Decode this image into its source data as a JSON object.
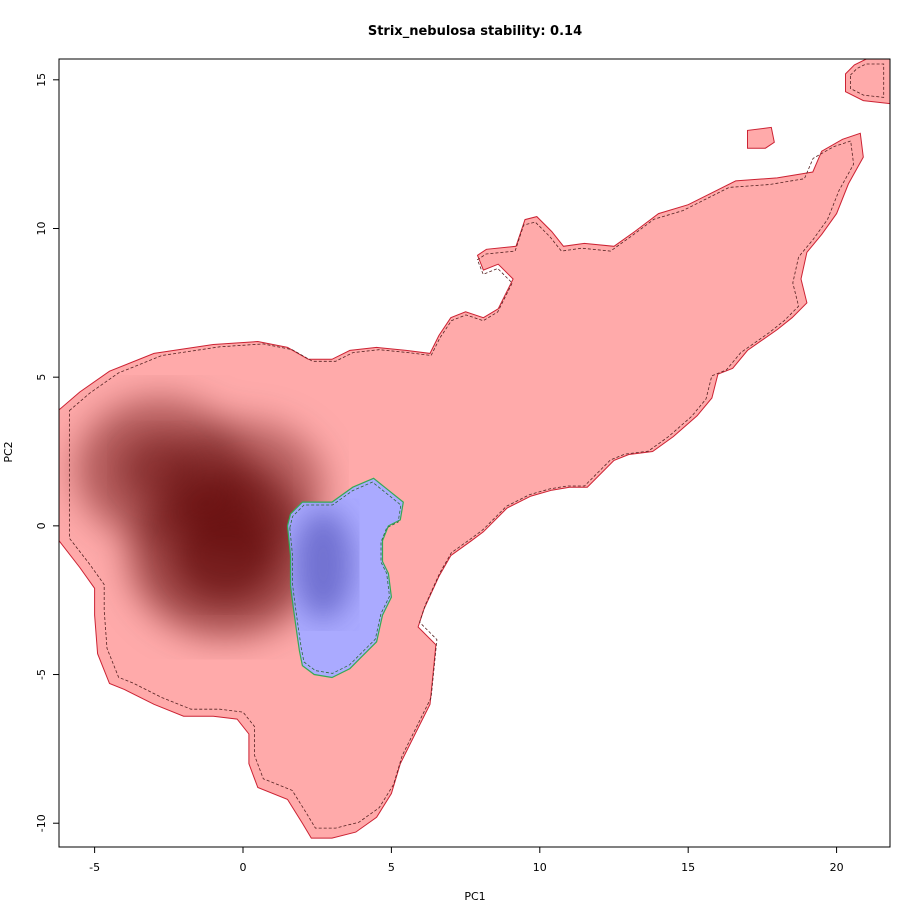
{
  "chart_data": {
    "type": "heatmap",
    "title": "Strix_nebulosa stability: 0.14",
    "xlabel": "PC1",
    "ylabel": "PC2",
    "xlim": [
      -6.2,
      21.8
    ],
    "ylim": [
      -10.8,
      15.7
    ],
    "xticks": [
      -5,
      0,
      5,
      10,
      15,
      20
    ],
    "yticks": [
      -10,
      -5,
      0,
      5,
      10,
      15
    ],
    "grid": false,
    "colors": {
      "background_niche": "#ffaaaa",
      "background_contour": "#cc2233",
      "species_niche": "#aaaaff",
      "species_contour": "#33aa55",
      "density_peak": "#5a0000",
      "species_density_peak": "#5555bb"
    },
    "series": [
      {
        "role": "background",
        "color": "#ffaaaa",
        "outline": [
          [
            -6.2,
            3.9
          ],
          [
            -5.5,
            4.5
          ],
          [
            -4.5,
            5.2
          ],
          [
            -3.0,
            5.8
          ],
          [
            -1.0,
            6.1
          ],
          [
            0.5,
            6.2
          ],
          [
            1.5,
            6.0
          ],
          [
            2.2,
            5.6
          ],
          [
            3.0,
            5.6
          ],
          [
            3.6,
            5.9
          ],
          [
            4.5,
            6.0
          ],
          [
            5.5,
            5.9
          ],
          [
            6.3,
            5.8
          ],
          [
            6.6,
            6.4
          ],
          [
            7.0,
            7.0
          ],
          [
            7.5,
            7.2
          ],
          [
            8.1,
            7.0
          ],
          [
            8.6,
            7.3
          ],
          [
            9.1,
            8.3
          ],
          [
            8.6,
            8.8
          ],
          [
            8.1,
            8.6
          ],
          [
            7.9,
            9.1
          ],
          [
            8.2,
            9.3
          ],
          [
            9.2,
            9.4
          ],
          [
            9.5,
            10.3
          ],
          [
            9.9,
            10.4
          ],
          [
            10.4,
            9.9
          ],
          [
            10.8,
            9.4
          ],
          [
            11.5,
            9.5
          ],
          [
            12.5,
            9.4
          ],
          [
            13.2,
            9.9
          ],
          [
            14.0,
            10.5
          ],
          [
            15.0,
            10.8
          ],
          [
            16.0,
            11.3
          ],
          [
            16.6,
            11.6
          ],
          [
            18.0,
            11.7
          ],
          [
            19.2,
            11.9
          ],
          [
            19.5,
            12.6
          ],
          [
            20.2,
            13.0
          ],
          [
            20.8,
            13.2
          ],
          [
            20.9,
            12.4
          ],
          [
            20.4,
            11.5
          ],
          [
            20.0,
            10.5
          ],
          [
            19.5,
            9.8
          ],
          [
            19.0,
            9.2
          ],
          [
            18.8,
            8.3
          ],
          [
            19.0,
            7.5
          ],
          [
            18.5,
            7.0
          ],
          [
            18.0,
            6.6
          ],
          [
            17.0,
            5.9
          ],
          [
            16.5,
            5.3
          ],
          [
            16.0,
            5.1
          ],
          [
            15.8,
            4.3
          ],
          [
            15.3,
            3.7
          ],
          [
            14.5,
            3.0
          ],
          [
            13.8,
            2.5
          ],
          [
            13.0,
            2.4
          ],
          [
            12.5,
            2.2
          ],
          [
            11.6,
            1.3
          ],
          [
            11.0,
            1.3
          ],
          [
            10.4,
            1.2
          ],
          [
            9.7,
            1.0
          ],
          [
            8.9,
            0.6
          ],
          [
            8.1,
            -0.2
          ],
          [
            7.7,
            -0.5
          ],
          [
            7.0,
            -1.0
          ],
          [
            6.6,
            -1.7
          ],
          [
            6.1,
            -2.8
          ],
          [
            5.9,
            -3.4
          ],
          [
            6.5,
            -4.0
          ],
          [
            6.4,
            -5.0
          ],
          [
            6.3,
            -6.0
          ],
          [
            5.8,
            -7.0
          ],
          [
            5.3,
            -8.0
          ],
          [
            5.0,
            -9.0
          ],
          [
            4.5,
            -9.8
          ],
          [
            3.8,
            -10.3
          ],
          [
            3.0,
            -10.5
          ],
          [
            2.3,
            -10.5
          ],
          [
            2.0,
            -10.0
          ],
          [
            1.5,
            -9.2
          ],
          [
            0.5,
            -8.8
          ],
          [
            0.2,
            -8.0
          ],
          [
            0.2,
            -7.0
          ],
          [
            -0.2,
            -6.5
          ],
          [
            -1.0,
            -6.4
          ],
          [
            -2.0,
            -6.4
          ],
          [
            -3.0,
            -6.0
          ],
          [
            -4.0,
            -5.5
          ],
          [
            -4.5,
            -5.3
          ],
          [
            -4.9,
            -4.3
          ],
          [
            -5.0,
            -3.0
          ],
          [
            -5.0,
            -2.1
          ],
          [
            -5.5,
            -1.4
          ],
          [
            -6.2,
            -0.5
          ]
        ],
        "islands": [
          [
            [
              17.0,
              13.3
            ],
            [
              17.0,
              12.7
            ],
            [
              17.6,
              12.7
            ],
            [
              17.9,
              12.9
            ],
            [
              17.8,
              13.4
            ]
          ],
          [
            [
              20.3,
              15.2
            ],
            [
              20.6,
              15.5
            ],
            [
              21.0,
              15.7
            ],
            [
              21.8,
              15.7
            ],
            [
              21.8,
              14.2
            ],
            [
              20.9,
              14.3
            ],
            [
              20.3,
              14.6
            ]
          ]
        ]
      },
      {
        "role": "species",
        "color": "#aaaaff",
        "outline": [
          [
            1.5,
            0.0
          ],
          [
            1.6,
            0.4
          ],
          [
            2.0,
            0.8
          ],
          [
            3.0,
            0.8
          ],
          [
            3.7,
            1.3
          ],
          [
            4.4,
            1.6
          ],
          [
            4.9,
            1.2
          ],
          [
            5.4,
            0.8
          ],
          [
            5.3,
            0.2
          ],
          [
            4.9,
            0.0
          ],
          [
            4.7,
            -0.5
          ],
          [
            4.7,
            -1.2
          ],
          [
            4.9,
            -1.6
          ],
          [
            5.0,
            -2.4
          ],
          [
            4.7,
            -3.0
          ],
          [
            4.5,
            -3.9
          ],
          [
            4.0,
            -4.4
          ],
          [
            3.6,
            -4.8
          ],
          [
            3.0,
            -5.1
          ],
          [
            2.4,
            -5.0
          ],
          [
            2.0,
            -4.7
          ],
          [
            1.9,
            -4.2
          ],
          [
            1.8,
            -3.5
          ],
          [
            1.7,
            -2.8
          ],
          [
            1.6,
            -2.0
          ],
          [
            1.6,
            -1.0
          ]
        ]
      }
    ],
    "density_peaks": [
      {
        "series": "background",
        "x": -0.6,
        "y": -1.0,
        "level": 1.0
      },
      {
        "series": "background",
        "x": -2.8,
        "y": 1.9,
        "level": 0.7
      },
      {
        "series": "background",
        "x": 0.1,
        "y": 1.3,
        "level": 0.55
      },
      {
        "series": "species",
        "x": 2.7,
        "y": -1.3,
        "level": 0.8
      }
    ]
  }
}
